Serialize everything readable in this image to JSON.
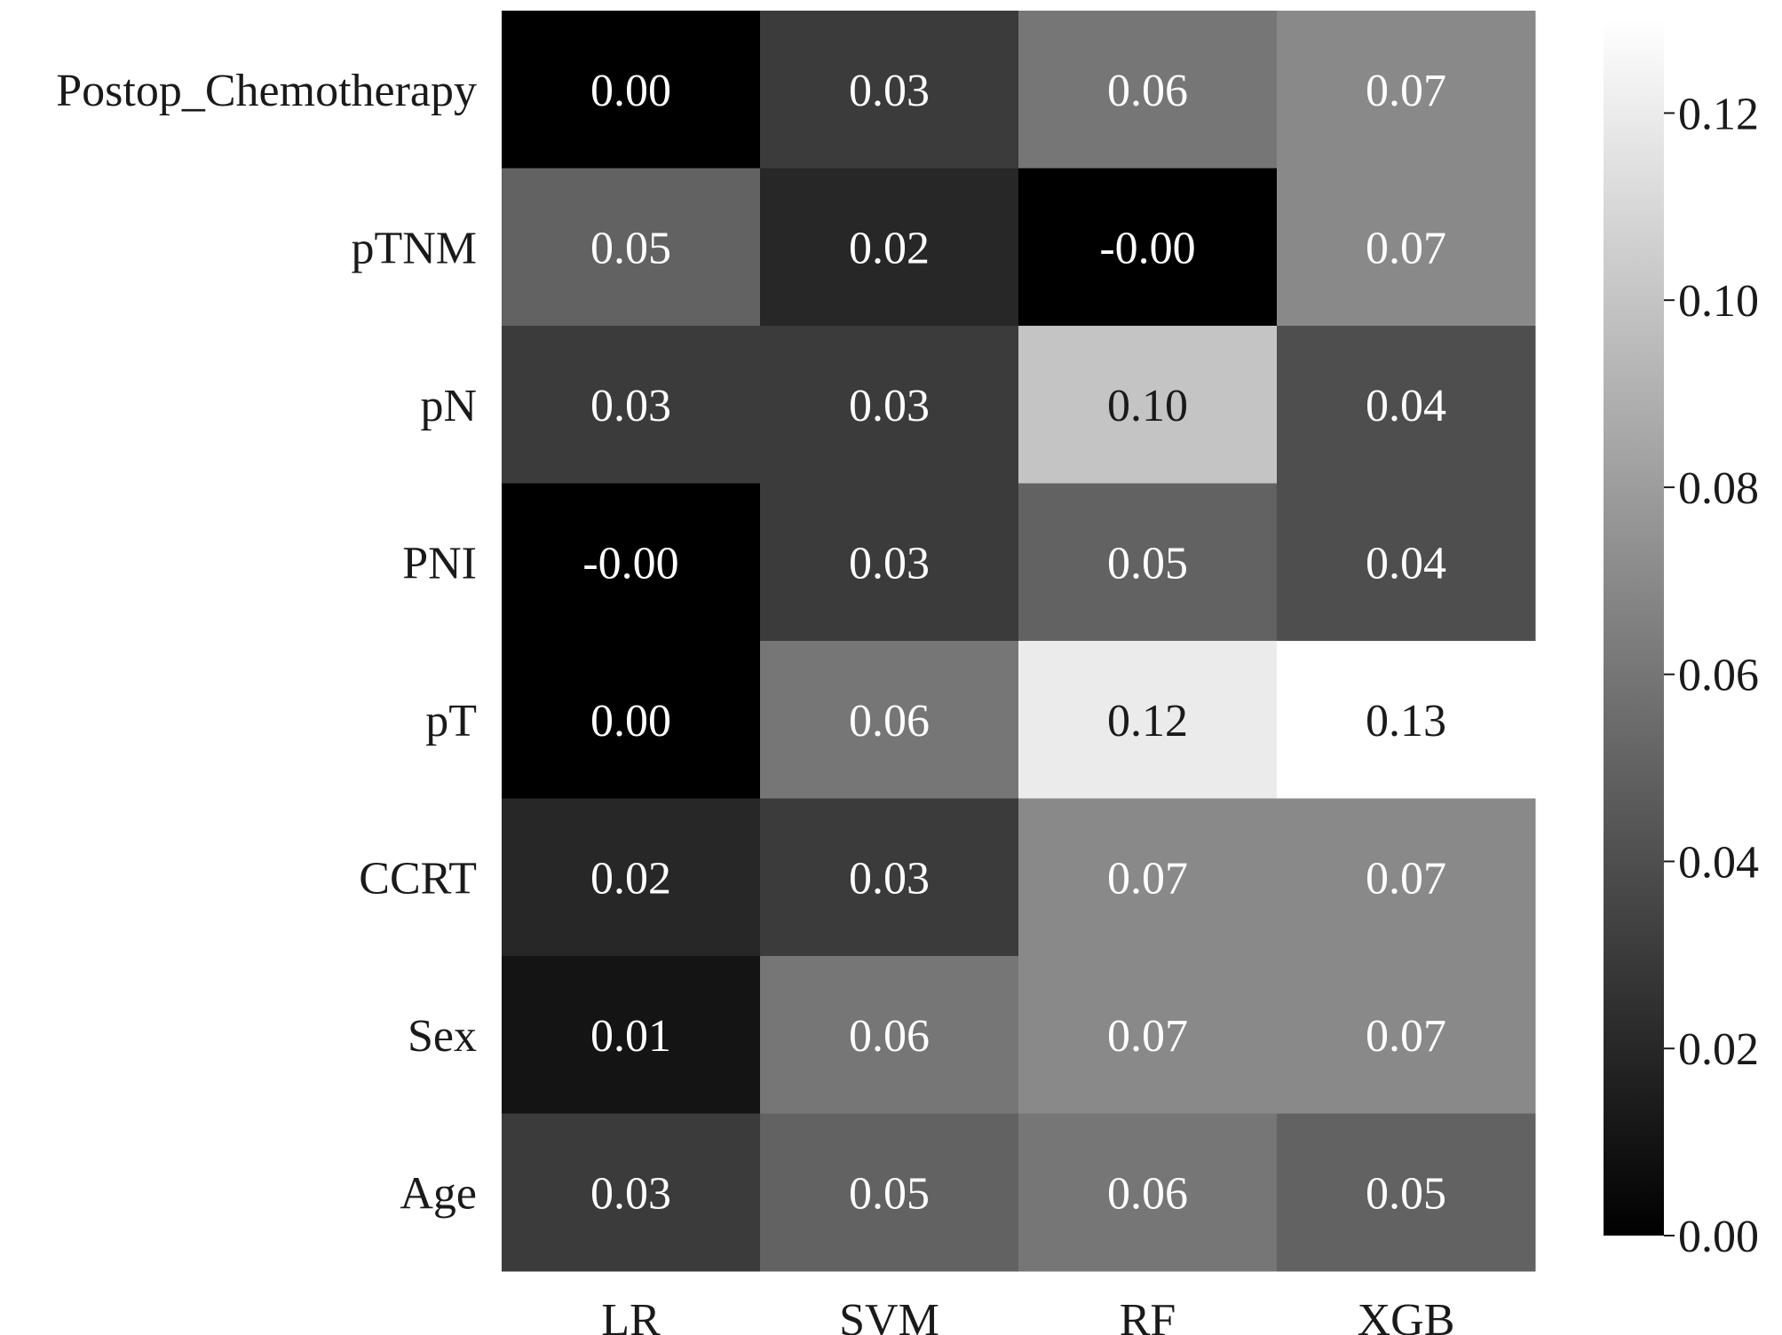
{
  "chart_data": {
    "type": "heatmap",
    "title": "",
    "xlabel": "",
    "ylabel": "",
    "columns": [
      "LR",
      "SVM",
      "RF",
      "XGB"
    ],
    "rows": [
      "Postop_Chemotherapy",
      "pTNM",
      "pN",
      "PNI",
      "pT",
      "CCRT",
      "Sex",
      "Age"
    ],
    "values": [
      [
        0.0,
        0.03,
        0.06,
        0.07
      ],
      [
        0.05,
        0.02,
        -0.0,
        0.07
      ],
      [
        0.03,
        0.03,
        0.1,
        0.04
      ],
      [
        -0.0,
        0.03,
        0.05,
        0.04
      ],
      [
        0.0,
        0.06,
        0.12,
        0.13
      ],
      [
        0.02,
        0.03,
        0.07,
        0.07
      ],
      [
        0.01,
        0.06,
        0.07,
        0.07
      ],
      [
        0.03,
        0.05,
        0.06,
        0.05
      ]
    ],
    "value_labels": [
      [
        "0.00",
        "0.03",
        "0.06",
        "0.07"
      ],
      [
        "0.05",
        "0.02",
        "-0.00",
        "0.07"
      ],
      [
        "0.03",
        "0.03",
        "0.10",
        "0.04"
      ],
      [
        "-0.00",
        "0.03",
        "0.05",
        "0.04"
      ],
      [
        "0.00",
        "0.06",
        "0.12",
        "0.13"
      ],
      [
        "0.02",
        "0.03",
        "0.07",
        "0.07"
      ],
      [
        "0.01",
        "0.06",
        "0.07",
        "0.07"
      ],
      [
        "0.03",
        "0.05",
        "0.06",
        "0.05"
      ]
    ],
    "colormap": "gray",
    "colorscale_range": [
      0.0,
      0.13
    ],
    "colorbar": {
      "ticks": [
        0.0,
        0.02,
        0.04,
        0.06,
        0.08,
        0.1,
        0.12
      ],
      "tick_labels": [
        "0.00",
        "0.02",
        "0.04",
        "0.06",
        "0.08",
        "0.10",
        "0.12"
      ],
      "placement": "right"
    },
    "colors": {
      "low": "#000000",
      "high": "#ffffff",
      "text_light": "#ffffff",
      "text_dark": "#1a1a1a"
    }
  }
}
